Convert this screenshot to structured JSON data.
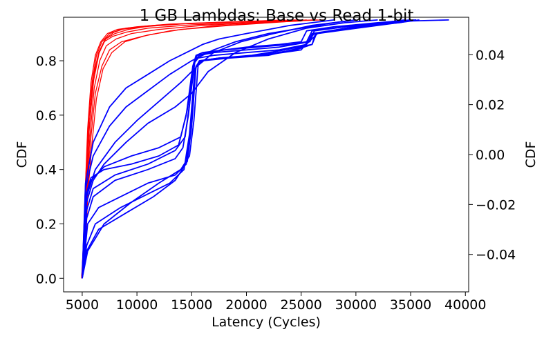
{
  "chart_data": {
    "type": "line",
    "title": "1 GB Lambdas: Base vs Read 1-bit",
    "xlabel": "Latency (Cycles)",
    "ylabel": "CDF",
    "ylabel_right": "CDF",
    "xlim": [
      3300,
      40300
    ],
    "ylim": [
      -0.05,
      0.96
    ],
    "ylim_right": [
      -0.055,
      0.055
    ],
    "x_ticks": [
      5000,
      10000,
      15000,
      20000,
      25000,
      30000,
      35000,
      40000
    ],
    "x_tick_labels": [
      "5000",
      "10000",
      "15000",
      "20000",
      "25000",
      "30000",
      "35000",
      "40000"
    ],
    "y_ticks": [
      0.0,
      0.2,
      0.4,
      0.6,
      0.8
    ],
    "y_tick_labels": [
      "0.0",
      "0.2",
      "0.4",
      "0.6",
      "0.8"
    ],
    "y_right_ticks": [
      -0.04,
      -0.02,
      0.0,
      0.02,
      0.04
    ],
    "y_right_tick_labels": [
      "−0.04",
      "−0.02",
      "0.00",
      "0.02",
      "0.04"
    ],
    "grid": false,
    "colors": {
      "base": "#ff0000",
      "read": "#0000ff"
    },
    "series_groups": [
      {
        "group": "base",
        "color": "#ff0000",
        "series": [
          {
            "x": [
              4950,
              5100,
              5250,
              5500,
              5800,
              6200,
              6700,
              7300,
              8200,
              10000,
              13000,
              18000,
              22000,
              25000
            ],
            "y": [
              0,
              0.1,
              0.3,
              0.55,
              0.72,
              0.82,
              0.87,
              0.9,
              0.915,
              0.925,
              0.935,
              0.942,
              0.946,
              0.95
            ]
          },
          {
            "x": [
              4950,
              5150,
              5300,
              5550,
              5900,
              6300,
              6800,
              7500,
              8500,
              10500,
              14000,
              19000,
              23000,
              26500
            ],
            "y": [
              0,
              0.1,
              0.3,
              0.55,
              0.72,
              0.82,
              0.87,
              0.9,
              0.915,
              0.925,
              0.935,
              0.942,
              0.946,
              0.95
            ]
          },
          {
            "x": [
              4950,
              5200,
              5350,
              5650,
              6000,
              6450,
              7000,
              7800,
              9000,
              11000,
              15000,
              20000,
              24000,
              27000
            ],
            "y": [
              0,
              0.1,
              0.3,
              0.55,
              0.72,
              0.82,
              0.87,
              0.89,
              0.905,
              0.92,
              0.932,
              0.94,
              0.946,
              0.95
            ]
          },
          {
            "x": [
              4950,
              5200,
              5400,
              5700,
              6100,
              6600,
              7200,
              8100,
              9500,
              12000,
              16000,
              21000,
              25000,
              25500
            ],
            "y": [
              0,
              0.1,
              0.3,
              0.52,
              0.7,
              0.8,
              0.855,
              0.88,
              0.9,
              0.915,
              0.93,
              0.94,
              0.946,
              0.95
            ]
          },
          {
            "x": [
              4950,
              5250,
              5450,
              5800,
              6200,
              6800,
              7500,
              8600,
              10500,
              13000,
              17000,
              22000,
              25500
            ],
            "y": [
              0,
              0.1,
              0.3,
              0.52,
              0.68,
              0.78,
              0.84,
              0.87,
              0.89,
              0.91,
              0.928,
              0.94,
              0.95
            ]
          },
          {
            "x": [
              4950,
              5100,
              5300,
              5600,
              6000,
              6500,
              7100,
              7900,
              9000,
              11500,
              15000,
              20000,
              23500
            ],
            "y": [
              0,
              0.12,
              0.35,
              0.58,
              0.74,
              0.83,
              0.88,
              0.905,
              0.92,
              0.93,
              0.938,
              0.945,
              0.95
            ]
          },
          {
            "x": [
              4950,
              5300,
              5500,
              5900,
              6300,
              6900,
              7700,
              8900,
              11000,
              14000,
              18500,
              23000,
              26000
            ],
            "y": [
              0,
              0.1,
              0.3,
              0.5,
              0.66,
              0.77,
              0.83,
              0.87,
              0.895,
              0.915,
              0.93,
              0.942,
              0.95
            ]
          },
          {
            "x": [
              4950,
              5150,
              5350,
              5650,
              6050,
              6550,
              7150,
              8000,
              9200,
              11200,
              14500,
              19500,
              24500
            ],
            "y": [
              0,
              0.11,
              0.32,
              0.56,
              0.73,
              0.83,
              0.88,
              0.9,
              0.915,
              0.928,
              0.937,
              0.944,
              0.95
            ]
          }
        ]
      },
      {
        "group": "read",
        "color": "#0000ff",
        "series": [
          {
            "x": [
              5000,
              5300,
              6000,
              7500,
              9000,
              11000,
              13000,
              15000,
              16000,
              17500,
              20000,
              22000,
              24000,
              26000,
              28000
            ],
            "y": [
              0,
              0.35,
              0.5,
              0.63,
              0.7,
              0.75,
              0.8,
              0.84,
              0.86,
              0.88,
              0.9,
              0.915,
              0.93,
              0.94,
              0.95
            ]
          },
          {
            "x": [
              5000,
              5300,
              6000,
              7500,
              9000,
              11000,
              13000,
              15000,
              17000,
              19000,
              22000,
              25000,
              28000,
              30000
            ],
            "y": [
              0,
              0.33,
              0.45,
              0.56,
              0.63,
              0.69,
              0.75,
              0.8,
              0.84,
              0.87,
              0.9,
              0.92,
              0.94,
              0.95
            ]
          },
          {
            "x": [
              5000,
              5400,
              6200,
              8000,
              10000,
              12000,
              14000,
              15500,
              17000,
              19500,
              22500,
              26000,
              30000
            ],
            "y": [
              0,
              0.3,
              0.4,
              0.5,
              0.58,
              0.65,
              0.72,
              0.78,
              0.83,
              0.87,
              0.9,
              0.93,
              0.95
            ]
          },
          {
            "x": [
              5000,
              5400,
              6000,
              7000,
              9000,
              11000,
              13500,
              15000,
              16500,
              19000,
              22000,
              25500,
              29000,
              32000
            ],
            "y": [
              0,
              0.28,
              0.36,
              0.42,
              0.5,
              0.57,
              0.63,
              0.68,
              0.76,
              0.83,
              0.88,
              0.92,
              0.94,
              0.95
            ]
          },
          {
            "x": [
              5000,
              5300,
              5800,
              7000,
              9500,
              12000,
              13800,
              14500,
              15100,
              15400,
              16000,
              18000,
              20000,
              23000,
              25000,
              25500,
              28000,
              32000,
              35000
            ],
            "y": [
              0,
              0.3,
              0.37,
              0.4,
              0.42,
              0.45,
              0.49,
              0.6,
              0.78,
              0.82,
              0.83,
              0.84,
              0.85,
              0.86,
              0.87,
              0.91,
              0.925,
              0.94,
              0.95
            ]
          },
          {
            "x": [
              5000,
              5300,
              5800,
              7000,
              9500,
              12000,
              14000,
              14600,
              15200,
              15500,
              16500,
              18000,
              21000,
              24000,
              25500,
              26000,
              29000,
              33000,
              35500
            ],
            "y": [
              0,
              0.3,
              0.36,
              0.41,
              0.45,
              0.48,
              0.52,
              0.62,
              0.79,
              0.82,
              0.83,
              0.84,
              0.85,
              0.86,
              0.87,
              0.91,
              0.925,
              0.94,
              0.95
            ]
          },
          {
            "x": [
              5000,
              5400,
              6000,
              8000,
              11000,
              13500,
              14400,
              14800,
              15300,
              15700,
              17000,
              20000,
              23000,
              25800,
              26200,
              30000,
              34000,
              38500
            ],
            "y": [
              0,
              0.25,
              0.33,
              0.38,
              0.42,
              0.47,
              0.52,
              0.64,
              0.8,
              0.82,
              0.83,
              0.84,
              0.85,
              0.87,
              0.91,
              0.93,
              0.945,
              0.95
            ]
          },
          {
            "x": [
              5000,
              5400,
              6000,
              8000,
              11000,
              13500,
              14200,
              14700,
              15200,
              15600,
              17000,
              20000,
              23000,
              25500,
              26000,
              30000,
              34000,
              35300
            ],
            "y": [
              0,
              0.22,
              0.3,
              0.36,
              0.4,
              0.44,
              0.48,
              0.6,
              0.79,
              0.81,
              0.82,
              0.83,
              0.84,
              0.86,
              0.9,
              0.925,
              0.94,
              0.95
            ]
          },
          {
            "x": [
              5000,
              5500,
              6500,
              8500,
              11000,
              13500,
              14500,
              14900,
              15400,
              15800,
              17500,
              20500,
              23500,
              26000,
              26300,
              30500,
              34500
            ],
            "y": [
              0,
              0.2,
              0.26,
              0.3,
              0.35,
              0.38,
              0.42,
              0.56,
              0.78,
              0.8,
              0.81,
              0.82,
              0.84,
              0.86,
              0.9,
              0.93,
              0.95
            ]
          },
          {
            "x": [
              5000,
              5400,
              6200,
              8500,
              11000,
              13000,
              14300,
              14800,
              15300,
              15700,
              17500,
              21000,
              24500,
              26000,
              26400,
              31000,
              35000
            ],
            "y": [
              0,
              0.12,
              0.2,
              0.26,
              0.31,
              0.35,
              0.4,
              0.53,
              0.77,
              0.8,
              0.81,
              0.82,
              0.84,
              0.86,
              0.9,
              0.93,
              0.95
            ]
          },
          {
            "x": [
              5000,
              5400,
              6500,
              9000,
              11500,
              13500,
              14600,
              15000,
              15400,
              15900,
              18000,
              21500,
              25000,
              26200,
              31500,
              35500
            ],
            "y": [
              0,
              0.1,
              0.18,
              0.24,
              0.3,
              0.36,
              0.43,
              0.56,
              0.78,
              0.8,
              0.81,
              0.82,
              0.84,
              0.9,
              0.93,
              0.95
            ]
          },
          {
            "x": [
              5000,
              5500,
              7000,
              9500,
              12000,
              14000,
              14800,
              15200,
              15600,
              16000,
              18500,
              22000,
              25200,
              26500,
              32000,
              35800
            ],
            "y": [
              0,
              0.1,
              0.2,
              0.28,
              0.35,
              0.4,
              0.45,
              0.58,
              0.79,
              0.8,
              0.81,
              0.82,
              0.85,
              0.9,
              0.93,
              0.95
            ]
          }
        ]
      }
    ]
  }
}
